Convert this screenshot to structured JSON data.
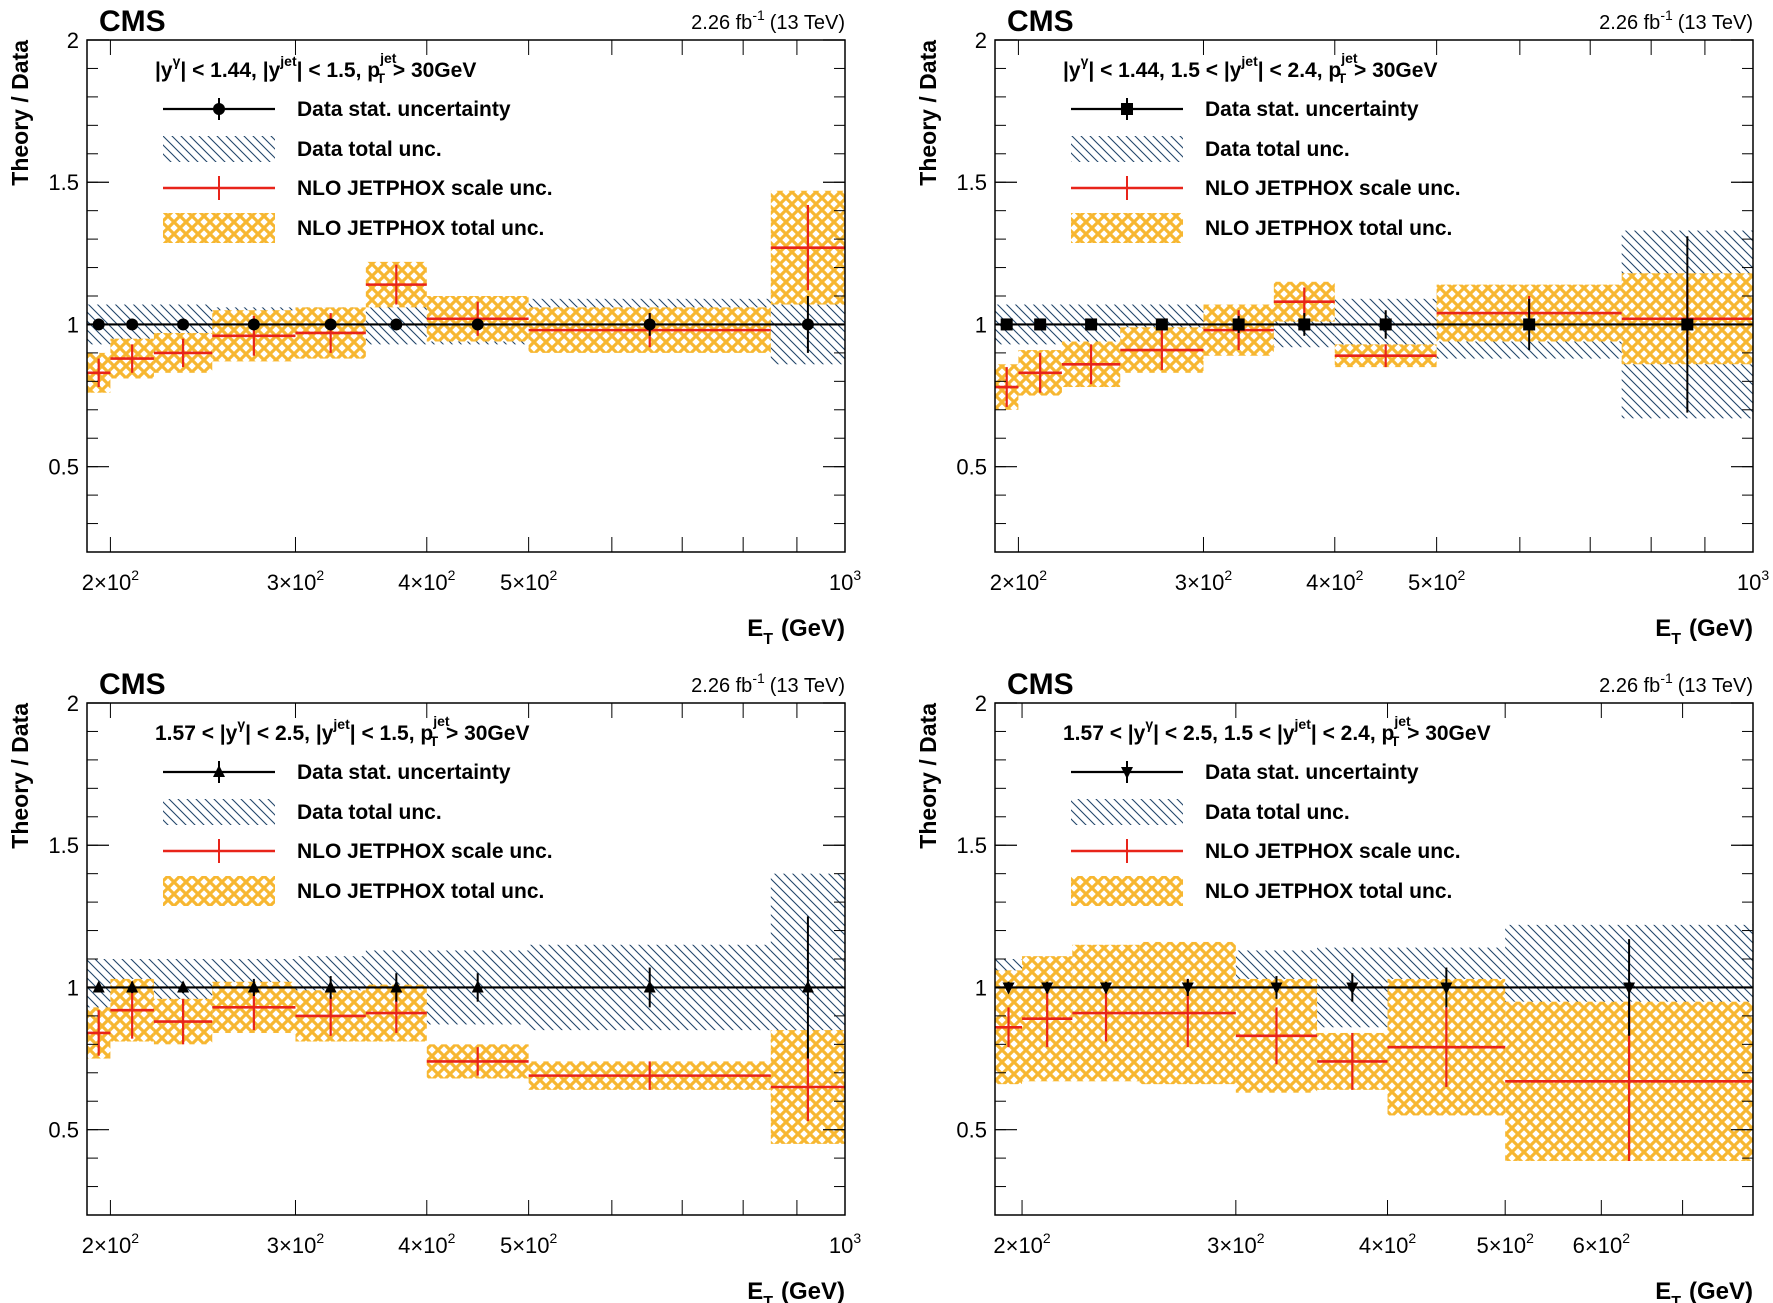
{
  "figure": {
    "colors": {
      "data": "#000000",
      "theory": "#e8241a",
      "theory_band": "#f7b731",
      "data_band": "#22466b"
    }
  },
  "chart_data": [
    {
      "type": "errorbar",
      "experiment": "CMS",
      "lumi_value": "2.26 fb",
      "lumi_exp": "-1",
      "energy": "(13 TeV)",
      "ylabel": "Theory / Data",
      "xlabel_main": "E",
      "xlabel_sub": "T",
      "xlabel_unit": "(GeV)",
      "xscale": "log",
      "xlim": [
        190,
        1000
      ],
      "ylim": [
        0.2,
        2.0
      ],
      "yticks": [
        "0.5",
        "1",
        "1.5",
        "2"
      ],
      "xticks": [
        {
          "value": 200,
          "mant": "2",
          "exp": "2"
        },
        {
          "value": 300,
          "mant": "3",
          "exp": "2"
        },
        {
          "value": 400,
          "mant": "4",
          "exp": "2"
        },
        {
          "value": 500,
          "mant": "5",
          "exp": "2"
        },
        {
          "value": 1000,
          "mant": "",
          "exp": "3"
        }
      ],
      "selection": {
        "p1": "|y",
        "s1": "γ",
        "p2": "| < 1.44, |y",
        "s2": "jet",
        "p3": "| < 1.5, p",
        "s3": "jet",
        "b3": "T",
        "p4": " > 30GeV"
      },
      "marker": "circle",
      "legend": {
        "data_stat": "Data stat. uncertainty",
        "data_total": "Data total unc.",
        "theory_scale": "NLO JETPHOX scale unc.",
        "theory_total": "NLO JETPHOX total unc."
      },
      "bins": [
        {
          "lo": 190,
          "hi": 200,
          "data": 1.0,
          "data_stat": 0.005,
          "data_tot": 0.07,
          "theory": 0.83,
          "theory_scale": 0.05,
          "theory_tot": 0.07
        },
        {
          "lo": 200,
          "hi": 220,
          "data": 1.0,
          "data_stat": 0.005,
          "data_tot": 0.07,
          "theory": 0.88,
          "theory_scale": 0.05,
          "theory_tot": 0.07
        },
        {
          "lo": 220,
          "hi": 250,
          "data": 1.0,
          "data_stat": 0.005,
          "data_tot": 0.07,
          "theory": 0.9,
          "theory_scale": 0.05,
          "theory_tot": 0.07
        },
        {
          "lo": 250,
          "hi": 300,
          "data": 1.0,
          "data_stat": 0.008,
          "data_tot": 0.06,
          "theory": 0.96,
          "theory_scale": 0.07,
          "theory_tot": 0.09
        },
        {
          "lo": 300,
          "hi": 350,
          "data": 1.0,
          "data_stat": 0.01,
          "data_tot": 0.06,
          "theory": 0.97,
          "theory_scale": 0.07,
          "theory_tot": 0.09
        },
        {
          "lo": 350,
          "hi": 400,
          "data": 1.0,
          "data_stat": 0.015,
          "data_tot": 0.07,
          "theory": 1.14,
          "theory_scale": 0.07,
          "theory_tot": 0.08
        },
        {
          "lo": 400,
          "hi": 500,
          "data": 1.0,
          "data_stat": 0.02,
          "data_tot": 0.07,
          "theory": 1.02,
          "theory_scale": 0.06,
          "theory_tot": 0.08
        },
        {
          "lo": 500,
          "hi": 850,
          "data": 1.0,
          "data_stat": 0.04,
          "data_tot": 0.09,
          "theory": 0.98,
          "theory_scale": 0.06,
          "theory_tot": 0.08
        },
        {
          "lo": 850,
          "hi": 1000,
          "data": 1.0,
          "data_stat": 0.1,
          "data_tot": 0.14,
          "theory": 1.27,
          "theory_scale": 0.15,
          "theory_tot": 0.2
        }
      ]
    },
    {
      "type": "errorbar",
      "experiment": "CMS",
      "lumi_value": "2.26 fb",
      "lumi_exp": "-1",
      "energy": "(13 TeV)",
      "ylabel": "Theory / Data",
      "xlabel_main": "E",
      "xlabel_sub": "T",
      "xlabel_unit": "(GeV)",
      "xscale": "log",
      "xlim": [
        190,
        1000
      ],
      "ylim": [
        0.2,
        2.0
      ],
      "yticks": [
        "0.5",
        "1",
        "1.5",
        "2"
      ],
      "xticks": [
        {
          "value": 200,
          "mant": "2",
          "exp": "2"
        },
        {
          "value": 300,
          "mant": "3",
          "exp": "2"
        },
        {
          "value": 400,
          "mant": "4",
          "exp": "2"
        },
        {
          "value": 500,
          "mant": "5",
          "exp": "2"
        },
        {
          "value": 1000,
          "mant": "",
          "exp": "3"
        }
      ],
      "selection": {
        "p1": "|y",
        "s1": "γ",
        "p2": "| < 1.44, 1.5 < |y",
        "s2": "jet",
        "p3": "| < 2.4, p",
        "s3": "jet",
        "b3": "T",
        "p4": " > 30GeV"
      },
      "marker": "square",
      "legend": {
        "data_stat": "Data stat. uncertainty",
        "data_total": "Data total unc.",
        "theory_scale": "NLO JETPHOX scale unc.",
        "theory_total": "NLO JETPHOX total unc."
      },
      "bins": [
        {
          "lo": 190,
          "hi": 200,
          "data": 1.0,
          "data_stat": 0.01,
          "data_tot": 0.07,
          "theory": 0.78,
          "theory_scale": 0.07,
          "theory_tot": 0.08
        },
        {
          "lo": 200,
          "hi": 220,
          "data": 1.0,
          "data_stat": 0.01,
          "data_tot": 0.07,
          "theory": 0.83,
          "theory_scale": 0.07,
          "theory_tot": 0.08
        },
        {
          "lo": 220,
          "hi": 250,
          "data": 1.0,
          "data_stat": 0.01,
          "data_tot": 0.07,
          "theory": 0.86,
          "theory_scale": 0.07,
          "theory_tot": 0.08
        },
        {
          "lo": 250,
          "hi": 300,
          "data": 1.0,
          "data_stat": 0.015,
          "data_tot": 0.07,
          "theory": 0.91,
          "theory_scale": 0.07,
          "theory_tot": 0.08
        },
        {
          "lo": 300,
          "hi": 350,
          "data": 1.0,
          "data_stat": 0.03,
          "data_tot": 0.07,
          "theory": 0.98,
          "theory_scale": 0.07,
          "theory_tot": 0.09
        },
        {
          "lo": 350,
          "hi": 400,
          "data": 1.0,
          "data_stat": 0.04,
          "data_tot": 0.08,
          "theory": 1.08,
          "theory_scale": 0.05,
          "theory_tot": 0.07
        },
        {
          "lo": 400,
          "hi": 500,
          "data": 1.0,
          "data_stat": 0.05,
          "data_tot": 0.09,
          "theory": 0.89,
          "theory_scale": 0.04,
          "theory_tot": 0.04
        },
        {
          "lo": 500,
          "hi": 750,
          "data": 1.0,
          "data_stat": 0.09,
          "data_tot": 0.12,
          "theory": 1.04,
          "theory_scale": 0.06,
          "theory_tot": 0.1
        },
        {
          "lo": 750,
          "hi": 1000,
          "data": 1.0,
          "data_stat": 0.31,
          "data_tot": 0.33,
          "theory": 1.02,
          "theory_scale": 0.12,
          "theory_tot": 0.16
        }
      ]
    },
    {
      "type": "errorbar",
      "experiment": "CMS",
      "lumi_value": "2.26 fb",
      "lumi_exp": "-1",
      "energy": "(13 TeV)",
      "ylabel": "Theory / Data",
      "xlabel_main": "E",
      "xlabel_sub": "T",
      "xlabel_unit": "(GeV)",
      "xscale": "log",
      "xlim": [
        190,
        1000
      ],
      "ylim": [
        0.2,
        2.0
      ],
      "yticks": [
        "0.5",
        "1",
        "1.5",
        "2"
      ],
      "xticks": [
        {
          "value": 200,
          "mant": "2",
          "exp": "2"
        },
        {
          "value": 300,
          "mant": "3",
          "exp": "2"
        },
        {
          "value": 400,
          "mant": "4",
          "exp": "2"
        },
        {
          "value": 500,
          "mant": "5",
          "exp": "2"
        },
        {
          "value": 1000,
          "mant": "",
          "exp": "3"
        }
      ],
      "selection": {
        "p1": "1.57 < |y",
        "s1": "γ",
        "p2": "| < 2.5, |y",
        "s2": "jet",
        "p3": "| < 1.5, p",
        "s3": "jet",
        "b3": "T",
        "p4": " > 30GeV"
      },
      "marker": "triangle-up",
      "legend": {
        "data_stat": "Data stat. uncertainty",
        "data_total": "Data total unc.",
        "theory_scale": "NLO JETPHOX scale unc.",
        "theory_total": "NLO JETPHOX total unc."
      },
      "bins": [
        {
          "lo": 190,
          "hi": 200,
          "data": 1.0,
          "data_stat": 0.01,
          "data_tot": 0.1,
          "theory": 0.84,
          "theory_scale": 0.08,
          "theory_tot": 0.09
        },
        {
          "lo": 200,
          "hi": 220,
          "data": 1.0,
          "data_stat": 0.02,
          "data_tot": 0.1,
          "theory": 0.92,
          "theory_scale": 0.1,
          "theory_tot": 0.11
        },
        {
          "lo": 220,
          "hi": 250,
          "data": 1.0,
          "data_stat": 0.02,
          "data_tot": 0.1,
          "theory": 0.88,
          "theory_scale": 0.08,
          "theory_tot": 0.08
        },
        {
          "lo": 250,
          "hi": 300,
          "data": 1.0,
          "data_stat": 0.03,
          "data_tot": 0.1,
          "theory": 0.93,
          "theory_scale": 0.08,
          "theory_tot": 0.09
        },
        {
          "lo": 300,
          "hi": 350,
          "data": 1.0,
          "data_stat": 0.04,
          "data_tot": 0.11,
          "theory": 0.9,
          "theory_scale": 0.07,
          "theory_tot": 0.09
        },
        {
          "lo": 350,
          "hi": 400,
          "data": 1.0,
          "data_stat": 0.05,
          "data_tot": 0.13,
          "theory": 0.91,
          "theory_scale": 0.07,
          "theory_tot": 0.1
        },
        {
          "lo": 400,
          "hi": 500,
          "data": 1.0,
          "data_stat": 0.05,
          "data_tot": 0.13,
          "theory": 0.74,
          "theory_scale": 0.05,
          "theory_tot": 0.06
        },
        {
          "lo": 500,
          "hi": 850,
          "data": 1.0,
          "data_stat": 0.07,
          "data_tot": 0.15,
          "theory": 0.69,
          "theory_scale": 0.05,
          "theory_tot": 0.05
        },
        {
          "lo": 850,
          "hi": 1000,
          "data": 1.0,
          "data_stat": 0.25,
          "data_tot": 0.4,
          "theory": 0.65,
          "theory_scale": 0.12,
          "theory_tot": 0.2
        }
      ]
    },
    {
      "type": "errorbar",
      "experiment": "CMS",
      "lumi_value": "2.26 fb",
      "lumi_exp": "-1",
      "energy": "(13 TeV)",
      "ylabel": "Theory / Data",
      "xlabel_main": "E",
      "xlabel_sub": "T",
      "xlabel_unit": "(GeV)",
      "xscale": "log",
      "xlim": [
        190,
        800
      ],
      "ylim": [
        0.2,
        2.0
      ],
      "yticks": [
        "0.5",
        "1",
        "1.5",
        "2"
      ],
      "xticks": [
        {
          "value": 200,
          "mant": "2",
          "exp": "2"
        },
        {
          "value": 300,
          "mant": "3",
          "exp": "2"
        },
        {
          "value": 400,
          "mant": "4",
          "exp": "2"
        },
        {
          "value": 500,
          "mant": "5",
          "exp": "2"
        },
        {
          "value": 600,
          "mant": "6",
          "exp": "2"
        }
      ],
      "selection": {
        "p1": "1.57 < |y",
        "s1": "γ",
        "p2": "| < 2.5, 1.5 < |y",
        "s2": "jet",
        "p3": "| < 2.4, p",
        "s3": "jet",
        "b3": "T",
        "p4": " > 30GeV"
      },
      "marker": "triangle-down",
      "legend": {
        "data_stat": "Data stat. uncertainty",
        "data_total": "Data total unc.",
        "theory_scale": "NLO JETPHOX scale unc.",
        "theory_total": "NLO JETPHOX total unc."
      },
      "bins": [
        {
          "lo": 190,
          "hi": 200,
          "data": 1.0,
          "data_stat": 0.02,
          "data_tot": 0.1,
          "theory": 0.86,
          "theory_scale": 0.07,
          "theory_tot": 0.2
        },
        {
          "lo": 200,
          "hi": 220,
          "data": 1.0,
          "data_stat": 0.02,
          "data_tot": 0.1,
          "theory": 0.89,
          "theory_scale": 0.1,
          "theory_tot": 0.22
        },
        {
          "lo": 220,
          "hi": 250,
          "data": 1.0,
          "data_stat": 0.02,
          "data_tot": 0.11,
          "theory": 0.91,
          "theory_scale": 0.1,
          "theory_tot": 0.24
        },
        {
          "lo": 250,
          "hi": 300,
          "data": 1.0,
          "data_stat": 0.03,
          "data_tot": 0.11,
          "theory": 0.91,
          "theory_scale": 0.12,
          "theory_tot": 0.25
        },
        {
          "lo": 300,
          "hi": 350,
          "data": 1.0,
          "data_stat": 0.04,
          "data_tot": 0.13,
          "theory": 0.83,
          "theory_scale": 0.1,
          "theory_tot": 0.2
        },
        {
          "lo": 350,
          "hi": 400,
          "data": 1.0,
          "data_stat": 0.05,
          "data_tot": 0.14,
          "theory": 0.74,
          "theory_scale": 0.1,
          "theory_tot": 0.1
        },
        {
          "lo": 400,
          "hi": 500,
          "data": 1.0,
          "data_stat": 0.07,
          "data_tot": 0.14,
          "theory": 0.79,
          "theory_scale": 0.14,
          "theory_tot": 0.24
        },
        {
          "lo": 500,
          "hi": 800,
          "data": 1.0,
          "data_stat": 0.17,
          "data_tot": 0.22,
          "theory": 0.67,
          "theory_scale": 0.28,
          "theory_tot": 0.28
        }
      ]
    }
  ]
}
